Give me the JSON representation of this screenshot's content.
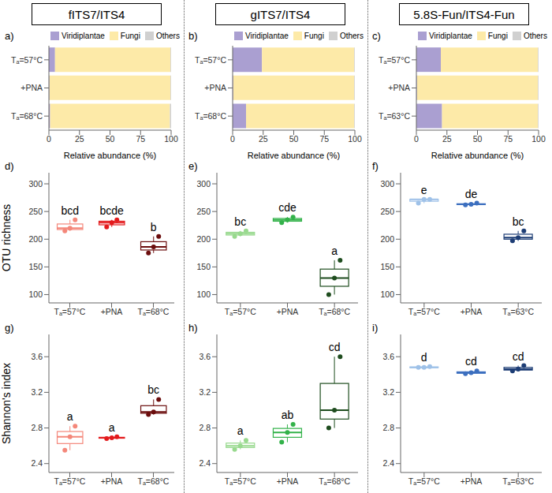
{
  "chart_data": [
    {
      "type": "bar",
      "orientation": "horizontal",
      "stacked": true,
      "title": "fITS7/ITS4",
      "panel_label": "a)",
      "categories": [
        "Tₐ=57°C",
        "+PNA",
        "Tₐ=68°C"
      ],
      "series": [
        {
          "name": "Viridiplantae",
          "color": "#aa9fd1",
          "values": [
            5,
            0.5,
            1
          ]
        },
        {
          "name": "Fungi",
          "color": "#fdeaa8",
          "values": [
            94.5,
            99,
            98
          ]
        },
        {
          "name": "Others",
          "color": "#d0d0d0",
          "values": [
            0.5,
            0.5,
            1
          ]
        }
      ],
      "xlabel": "Relative abundance (%)",
      "xlim": [
        0,
        100
      ],
      "xticks": [
        0,
        25,
        50,
        75,
        100
      ],
      "legend": "top"
    },
    {
      "type": "bar",
      "orientation": "horizontal",
      "stacked": true,
      "title": "gITS7/ITS4",
      "panel_label": "b)",
      "categories": [
        "Tₐ=57°C",
        "+PNA",
        "Tₐ=68°C"
      ],
      "series": [
        {
          "name": "Viridiplantae",
          "color": "#aa9fd1",
          "values": [
            24,
            0.5,
            11
          ]
        },
        {
          "name": "Fungi",
          "color": "#fdeaa8",
          "values": [
            75.5,
            99,
            88.5
          ]
        },
        {
          "name": "Others",
          "color": "#d0d0d0",
          "values": [
            0.5,
            0.5,
            0.5
          ]
        }
      ],
      "xlabel": "Relative abundance (%)",
      "xlim": [
        0,
        100
      ],
      "xticks": [
        0,
        25,
        50,
        75,
        100
      ],
      "legend": "top"
    },
    {
      "type": "bar",
      "orientation": "horizontal",
      "stacked": true,
      "title": "5.8S-Fun/ITS4-Fun",
      "panel_label": "c)",
      "categories": [
        "Tₐ=57°C",
        "+PNA",
        "Tₐ=63°C"
      ],
      "series": [
        {
          "name": "Viridiplantae",
          "color": "#aa9fd1",
          "values": [
            20,
            0.5,
            21
          ]
        },
        {
          "name": "Fungi",
          "color": "#fdeaa8",
          "values": [
            79.5,
            99,
            78.5
          ]
        },
        {
          "name": "Others",
          "color": "#d0d0d0",
          "values": [
            0.5,
            0.5,
            0.5
          ]
        }
      ],
      "xlabel": "Relative abundance (%)",
      "xlim": [
        0,
        100
      ],
      "xticks": [
        0,
        25,
        50,
        75,
        100
      ],
      "legend": "top"
    },
    {
      "type": "boxplot",
      "panel_label": "d)",
      "ylabel": "OTU richness",
      "categories": [
        "Tₐ=57°C",
        "+PNA",
        "Tₐ=68°C"
      ],
      "colors": [
        "#f4877a",
        "#e31a1c",
        "#6b0d0d"
      ],
      "ylim": [
        85,
        320
      ],
      "yticks": [
        100,
        150,
        200,
        250,
        300
      ],
      "boxes": [
        {
          "min": 215,
          "q1": 217.5,
          "median": 220,
          "q3": 227.5,
          "max": 235,
          "points": [
            215,
            220,
            235
          ]
        },
        {
          "min": 222,
          "q1": 226,
          "median": 230,
          "q3": 232.5,
          "max": 235,
          "points": [
            222,
            230,
            235
          ]
        },
        {
          "min": 175,
          "q1": 180.5,
          "median": 186,
          "q3": 195.5,
          "max": 205,
          "points": [
            175,
            186,
            205
          ]
        }
      ],
      "annotations": [
        "bcd",
        "bcde",
        "b"
      ]
    },
    {
      "type": "boxplot",
      "panel_label": "e)",
      "categories": [
        "Tₐ=57°C",
        "+PNA",
        "Tₐ=68°C"
      ],
      "colors": [
        "#98d98e",
        "#33b24a",
        "#1f4d1f"
      ],
      "ylim": [
        85,
        320
      ],
      "yticks": [
        100,
        150,
        200,
        250,
        300
      ],
      "boxes": [
        {
          "min": 205,
          "q1": 207.5,
          "median": 210,
          "q3": 212.5,
          "max": 215,
          "points": [
            205,
            210,
            215
          ]
        },
        {
          "min": 230,
          "q1": 232.5,
          "median": 235,
          "q3": 237.5,
          "max": 240,
          "points": [
            230,
            235,
            240
          ]
        },
        {
          "min": 100,
          "q1": 115,
          "median": 130,
          "q3": 146,
          "max": 162,
          "points": [
            100,
            130,
            162
          ]
        }
      ],
      "annotations": [
        "bc",
        "cde",
        "a"
      ]
    },
    {
      "type": "boxplot",
      "panel_label": "f)",
      "categories": [
        "Tₐ=57°C",
        "+PNA",
        "Tₐ=63°C"
      ],
      "colors": [
        "#9ec1e8",
        "#3c6fbf",
        "#1d3d75"
      ],
      "ylim": [
        85,
        320
      ],
      "yticks": [
        100,
        150,
        200,
        250,
        300
      ],
      "boxes": [
        {
          "min": 265,
          "q1": 268.5,
          "median": 272,
          "q3": 272,
          "max": 272,
          "points": [
            265,
            272,
            272
          ]
        },
        {
          "min": 262,
          "q1": 262.5,
          "median": 263,
          "q3": 264,
          "max": 265,
          "points": [
            262,
            263,
            265
          ]
        },
        {
          "min": 197,
          "q1": 200,
          "median": 203,
          "q3": 209,
          "max": 215,
          "points": [
            197,
            203,
            215
          ]
        }
      ],
      "annotations": [
        "e",
        "de",
        "bc"
      ]
    },
    {
      "type": "boxplot",
      "panel_label": "g)",
      "ylabel": "Shannon's index",
      "categories": [
        "Tₐ=57°C",
        "+PNA",
        "Tₐ=68°C"
      ],
      "colors": [
        "#f4877a",
        "#e31a1c",
        "#6b0d0d"
      ],
      "ylim": [
        2.3,
        3.85
      ],
      "yticks": [
        2.4,
        2.8,
        3.2,
        3.6
      ],
      "boxes": [
        {
          "min": 2.55,
          "q1": 2.625,
          "median": 2.7,
          "q3": 2.76,
          "max": 2.82,
          "points": [
            2.55,
            2.7,
            2.82
          ]
        },
        {
          "min": 2.68,
          "q1": 2.685,
          "median": 2.69,
          "q3": 2.695,
          "max": 2.7,
          "points": [
            2.68,
            2.69,
            2.7
          ]
        },
        {
          "min": 2.95,
          "q1": 2.965,
          "median": 2.98,
          "q3": 3.05,
          "max": 3.12,
          "points": [
            2.95,
            2.98,
            3.12
          ]
        }
      ],
      "annotations": [
        "a",
        "a",
        "bc"
      ]
    },
    {
      "type": "boxplot",
      "panel_label": "h)",
      "categories": [
        "Tₐ=57°C",
        "+PNA",
        "Tₐ=68°C"
      ],
      "colors": [
        "#98d98e",
        "#33b24a",
        "#1f4d1f"
      ],
      "ylim": [
        2.3,
        3.85
      ],
      "yticks": [
        2.4,
        2.8,
        3.2,
        3.6
      ],
      "boxes": [
        {
          "min": 2.56,
          "q1": 2.58,
          "median": 2.6,
          "q3": 2.63,
          "max": 2.66,
          "points": [
            2.56,
            2.6,
            2.66
          ]
        },
        {
          "min": 2.64,
          "q1": 2.695,
          "median": 2.75,
          "q3": 2.795,
          "max": 2.84,
          "points": [
            2.64,
            2.75,
            2.84
          ]
        },
        {
          "min": 2.8,
          "q1": 2.9,
          "median": 3.0,
          "q3": 3.3,
          "max": 3.6,
          "points": [
            2.8,
            3.0,
            3.6
          ]
        }
      ],
      "annotations": [
        "a",
        "ab",
        "cd"
      ]
    },
    {
      "type": "boxplot",
      "panel_label": "i)",
      "categories": [
        "Tₐ=57°C",
        "+PNA",
        "Tₐ=63°C"
      ],
      "colors": [
        "#9ec1e8",
        "#3c6fbf",
        "#1d3d75"
      ],
      "ylim": [
        2.3,
        3.85
      ],
      "yticks": [
        2.4,
        2.8,
        3.2,
        3.6
      ],
      "boxes": [
        {
          "min": 3.48,
          "q1": 3.48,
          "median": 3.48,
          "q3": 3.485,
          "max": 3.49,
          "points": [
            3.48,
            3.48,
            3.49
          ]
        },
        {
          "min": 3.41,
          "q1": 3.415,
          "median": 3.42,
          "q3": 3.43,
          "max": 3.44,
          "points": [
            3.41,
            3.42,
            3.44
          ]
        },
        {
          "min": 3.44,
          "q1": 3.45,
          "median": 3.46,
          "q3": 3.48,
          "max": 3.5,
          "points": [
            3.44,
            3.46,
            3.5
          ]
        }
      ],
      "annotations": [
        "d",
        "cd",
        "cd"
      ]
    }
  ]
}
